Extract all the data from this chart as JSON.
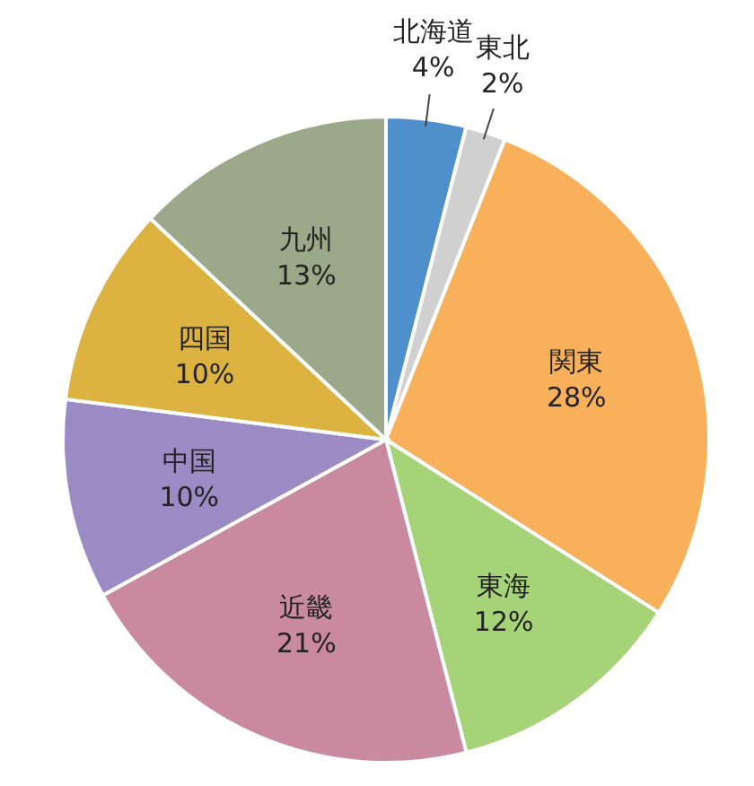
{
  "chart_data": {
    "type": "pie",
    "categories": [
      "北海道",
      "東北",
      "関東",
      "東海",
      "近畿",
      "中国",
      "四国",
      "九州"
    ],
    "values": [
      4,
      2,
      28,
      12,
      21,
      10,
      10,
      13
    ],
    "value_labels": [
      "4%",
      "2%",
      "28%",
      "12%",
      "21%",
      "10%",
      "10%",
      "13%"
    ],
    "colors": [
      "#4e8fcc",
      "#d0d0d0",
      "#f9b05a",
      "#a6d377",
      "#c98aa0",
      "#9b8bc4",
      "#dcb240",
      "#9ba88a"
    ]
  }
}
